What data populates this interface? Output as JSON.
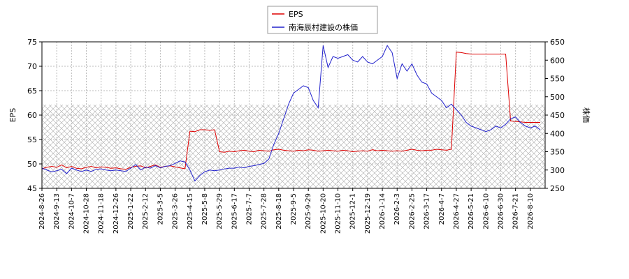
{
  "chart_data": {
    "type": "line",
    "categories": [
      "2024-8-26",
      null,
      null,
      "2024-9-13",
      null,
      null,
      "2024-10-7",
      null,
      null,
      "2024-10-28",
      null,
      null,
      "2024-11-18",
      null,
      null,
      "2024-12-26",
      null,
      null,
      "2025-1-22",
      null,
      null,
      "2025-2-12",
      null,
      null,
      "2025-3-5",
      null,
      null,
      "2025-3-26",
      null,
      null,
      "2025-4-15",
      null,
      null,
      "2025-5-8",
      null,
      null,
      "2025-5-29",
      null,
      null,
      "2025-6-17",
      null,
      null,
      "2025-7-7",
      null,
      null,
      "2025-7-28",
      null,
      null,
      "2025-8-18",
      null,
      null,
      "2025-9-5",
      null,
      null,
      "2025-9-29",
      null,
      null,
      "2025-10-20",
      null,
      null,
      "2025-11-10",
      null,
      null,
      "2025-12-1",
      null,
      null,
      "2025-12-19",
      null,
      null,
      "2026-1-14",
      null,
      null,
      "2026-2-3",
      null,
      null,
      "2026-2-25",
      null,
      null,
      "2026-3-17",
      null,
      null,
      "2026-4-7",
      null,
      null,
      "2026-4-27",
      null,
      null,
      "2026-5-21",
      null,
      null,
      "2026-6-10",
      null,
      null,
      "2026-6-30",
      null,
      null,
      "2026-7-21",
      null,
      null,
      "2026-8-10",
      null,
      null
    ],
    "series": [
      {
        "name": "EPS",
        "color": "#dd0000",
        "axis": "y",
        "values": [
          49,
          49.3,
          49.5,
          49.3,
          49.8,
          49.2,
          49.5,
          49.1,
          49,
          49.3,
          49.5,
          49.2,
          49.4,
          49.3,
          49.1,
          49.2,
          49,
          48.9,
          49.3,
          49.5,
          49.6,
          49.2,
          49.5,
          49.8,
          49.3,
          49.5,
          49.6,
          49.4,
          49.2,
          49,
          56.7,
          56.6,
          57,
          57,
          56.9,
          57,
          52.5,
          52.4,
          52.6,
          52.5,
          52.7,
          52.8,
          52.6,
          52.5,
          52.8,
          52.7,
          52.6,
          52.9,
          53,
          52.8,
          52.7,
          52.6,
          52.8,
          52.7,
          52.9,
          52.8,
          52.6,
          52.7,
          52.8,
          52.7,
          52.6,
          52.8,
          52.7,
          52.5,
          52.6,
          52.7,
          52.6,
          52.9,
          52.7,
          52.8,
          52.7,
          52.6,
          52.7,
          52.6,
          52.8,
          53,
          52.8,
          52.7,
          52.8,
          52.8,
          53,
          52.9,
          52.8,
          53,
          72.9,
          72.8,
          72.6,
          72.5,
          72.5,
          72.5,
          72.5,
          72.5,
          72.5,
          72.5,
          72.5,
          58.8,
          58.7,
          58.6,
          58.5,
          58.5,
          58.5,
          58.5
        ]
      },
      {
        "name": "南海辰村建設の株価",
        "color": "#2222cc",
        "axis": "y2",
        "values": [
          305,
          300,
          295,
          298,
          302,
          290,
          305,
          300,
          296,
          300,
          296,
          302,
          303,
          300,
          298,
          300,
          298,
          296,
          305,
          315,
          300,
          308,
          305,
          312,
          306,
          310,
          312,
          318,
          325,
          322,
          300,
          270,
          285,
          295,
          300,
          298,
          300,
          303,
          305,
          305,
          308,
          306,
          310,
          312,
          315,
          318,
          330,
          370,
          400,
          440,
          480,
          510,
          520,
          530,
          525,
          490,
          470,
          640,
          580,
          610,
          605,
          610,
          615,
          600,
          595,
          610,
          595,
          590,
          600,
          610,
          640,
          620,
          550,
          590,
          570,
          590,
          560,
          540,
          535,
          510,
          500,
          490,
          470,
          480,
          465,
          450,
          430,
          420,
          415,
          410,
          405,
          410,
          420,
          415,
          425,
          440,
          445,
          430,
          420,
          415,
          420,
          410
        ]
      }
    ],
    "ylabel": "EPS",
    "y2label": "株価",
    "ylim": [
      45,
      75
    ],
    "yticks": [
      45,
      50,
      55,
      60,
      65,
      70,
      75
    ],
    "y2lim": [
      250,
      650
    ],
    "y2ticks": [
      250,
      300,
      350,
      400,
      450,
      500,
      550,
      600,
      650
    ],
    "grid": true,
    "legend": "top"
  }
}
